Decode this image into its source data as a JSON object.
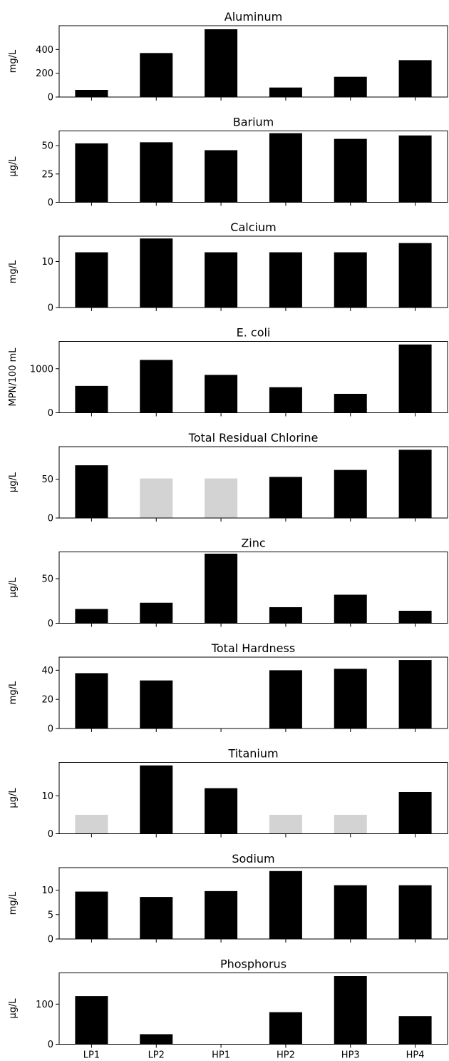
{
  "colors": {
    "measured": "#000000",
    "below_detection": "#d3d3d3"
  },
  "chart_data": [
    {
      "type": "bar",
      "title": "Aluminum",
      "ylabel": "mg/L",
      "categories": [
        "LP1",
        "LP2",
        "HP1",
        "HP2",
        "HP3",
        "HP4"
      ],
      "values": [
        60,
        370,
        570,
        80,
        170,
        310
      ],
      "below_detection": [
        false,
        false,
        false,
        false,
        false,
        false
      ],
      "ylim": [
        0,
        600
      ],
      "yticks": [
        0,
        200,
        400
      ],
      "ytick_labels": [
        "0",
        "200",
        "400"
      ]
    },
    {
      "type": "bar",
      "title": "Barium",
      "ylabel": "μg/L",
      "categories": [
        "LP1",
        "LP2",
        "HP1",
        "HP2",
        "HP3",
        "HP4"
      ],
      "values": [
        52,
        53,
        46,
        61,
        56,
        59
      ],
      "below_detection": [
        false,
        false,
        false,
        false,
        false,
        false
      ],
      "ylim": [
        0,
        63
      ],
      "yticks": [
        0,
        25,
        50
      ],
      "ytick_labels": [
        "0",
        "25",
        "50"
      ]
    },
    {
      "type": "bar",
      "title": "Calcium",
      "ylabel": "mg/L",
      "categories": [
        "LP1",
        "LP2",
        "HP1",
        "HP2",
        "HP3",
        "HP4"
      ],
      "values": [
        12,
        15,
        12,
        12,
        12,
        14
      ],
      "below_detection": [
        false,
        false,
        false,
        false,
        false,
        false
      ],
      "ylim": [
        0,
        15.5
      ],
      "yticks": [
        0,
        10
      ],
      "ytick_labels": [
        "0",
        "10"
      ]
    },
    {
      "type": "bar",
      "title": "E. coli",
      "ylabel": "MPN/100 mL",
      "categories": [
        "LP1",
        "LP2",
        "HP1",
        "HP2",
        "HP3",
        "HP4"
      ],
      "values": [
        610,
        1200,
        860,
        580,
        430,
        1550
      ],
      "below_detection": [
        false,
        false,
        false,
        false,
        false,
        false
      ],
      "ylim": [
        0,
        1620
      ],
      "yticks": [
        0,
        1000
      ],
      "ytick_labels": [
        "0",
        "1000"
      ]
    },
    {
      "type": "bar",
      "title": "Total Residual Chlorine",
      "ylabel": "μg/L",
      "categories": [
        "LP1",
        "LP2",
        "HP1",
        "HP2",
        "HP3",
        "HP4"
      ],
      "values": [
        68,
        51,
        51,
        53,
        62,
        88
      ],
      "below_detection": [
        false,
        true,
        true,
        false,
        false,
        false
      ],
      "ylim": [
        0,
        92
      ],
      "yticks": [
        0,
        50
      ],
      "ytick_labels": [
        "0",
        "50"
      ]
    },
    {
      "type": "bar",
      "title": "Zinc",
      "ylabel": "μg/L",
      "categories": [
        "LP1",
        "LP2",
        "HP1",
        "HP2",
        "HP3",
        "HP4"
      ],
      "values": [
        16,
        23,
        78,
        18,
        32,
        14
      ],
      "below_detection": [
        false,
        false,
        false,
        false,
        false,
        false
      ],
      "ylim": [
        0,
        80
      ],
      "yticks": [
        0,
        50
      ],
      "ytick_labels": [
        "0",
        "50"
      ]
    },
    {
      "type": "bar",
      "title": "Total Hardness",
      "ylabel": "mg/L",
      "categories": [
        "LP1",
        "LP2",
        "HP1",
        "HP2",
        "HP3",
        "HP4"
      ],
      "values": [
        38,
        33,
        0,
        40,
        41,
        47
      ],
      "below_detection": [
        false,
        false,
        false,
        false,
        false,
        false
      ],
      "ylim": [
        0,
        49
      ],
      "yticks": [
        0,
        20,
        40
      ],
      "ytick_labels": [
        "0",
        "20",
        "40"
      ]
    },
    {
      "type": "bar",
      "title": "Titanium",
      "ylabel": "μg/L",
      "categories": [
        "LP1",
        "LP2",
        "HP1",
        "HP2",
        "HP3",
        "HP4"
      ],
      "values": [
        5,
        18,
        12,
        5,
        5,
        11
      ],
      "below_detection": [
        true,
        false,
        false,
        true,
        true,
        false
      ],
      "ylim": [
        0,
        18.8
      ],
      "yticks": [
        0,
        10
      ],
      "ytick_labels": [
        "0",
        "10"
      ]
    },
    {
      "type": "bar",
      "title": "Sodium",
      "ylabel": "mg/L",
      "categories": [
        "LP1",
        "LP2",
        "HP1",
        "HP2",
        "HP3",
        "HP4"
      ],
      "values": [
        9.7,
        8.6,
        9.8,
        13.9,
        11,
        11
      ],
      "below_detection": [
        false,
        false,
        false,
        false,
        false,
        false
      ],
      "ylim": [
        0,
        14.6
      ],
      "yticks": [
        0,
        5,
        10
      ],
      "ytick_labels": [
        "0",
        "5",
        "10"
      ]
    },
    {
      "type": "bar",
      "title": "Phosphorus",
      "ylabel": "μg/L",
      "categories": [
        "LP1",
        "LP2",
        "HP1",
        "HP2",
        "HP3",
        "HP4"
      ],
      "values": [
        120,
        25,
        0,
        80,
        170,
        70
      ],
      "below_detection": [
        false,
        false,
        false,
        false,
        false,
        false
      ],
      "ylim": [
        0,
        178
      ],
      "yticks": [
        0,
        100
      ],
      "ytick_labels": [
        "0",
        "100"
      ]
    }
  ]
}
